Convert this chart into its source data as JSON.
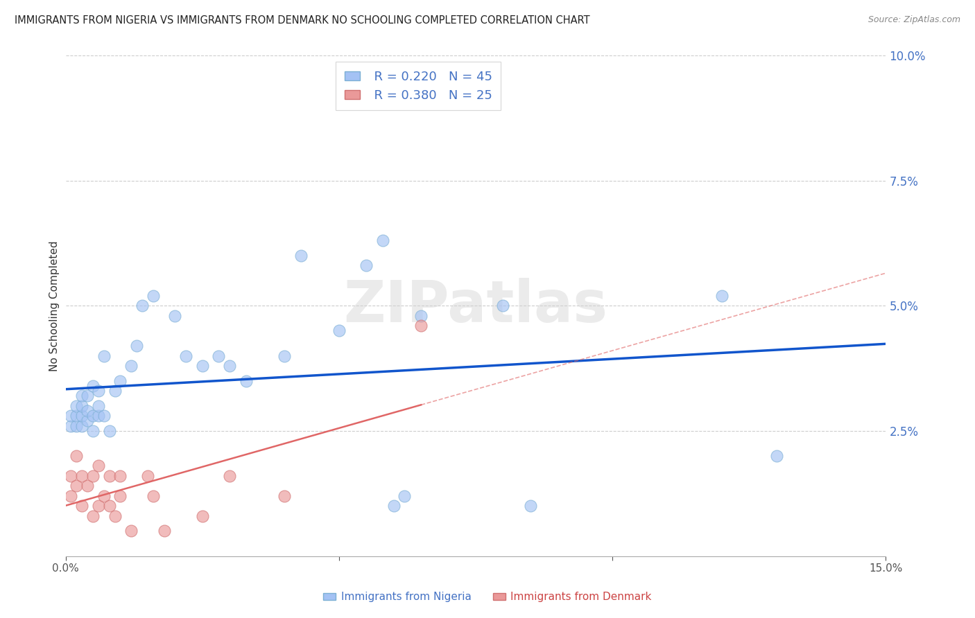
{
  "title": "IMMIGRANTS FROM NIGERIA VS IMMIGRANTS FROM DENMARK NO SCHOOLING COMPLETED CORRELATION CHART",
  "source": "Source: ZipAtlas.com",
  "xlabel_bottom": "Immigrants from Nigeria",
  "xlabel_bottom2": "Immigrants from Denmark",
  "ylabel": "No Schooling Completed",
  "xlim": [
    0.0,
    0.15
  ],
  "ylim": [
    0.0,
    0.1
  ],
  "xticks": [
    0.0,
    0.05,
    0.1,
    0.15
  ],
  "xtick_labels": [
    "0.0%",
    "",
    "",
    "15.0%"
  ],
  "ytick_labels_right": [
    "10.0%",
    "7.5%",
    "5.0%",
    "2.5%"
  ],
  "yticks_right": [
    0.1,
    0.075,
    0.05,
    0.025
  ],
  "nigeria_R": 0.22,
  "nigeria_N": 45,
  "denmark_R": 0.38,
  "denmark_N": 25,
  "nigeria_color": "#a4c2f4",
  "denmark_color": "#ea9999",
  "nigeria_line_color": "#1155cc",
  "denmark_line_color": "#e06666",
  "watermark_text": "ZIPatlas",
  "nigeria_x": [
    0.001,
    0.001,
    0.002,
    0.002,
    0.002,
    0.003,
    0.003,
    0.003,
    0.003,
    0.004,
    0.004,
    0.004,
    0.005,
    0.005,
    0.005,
    0.006,
    0.006,
    0.006,
    0.007,
    0.007,
    0.008,
    0.009,
    0.01,
    0.012,
    0.013,
    0.014,
    0.016,
    0.02,
    0.022,
    0.025,
    0.028,
    0.03,
    0.033,
    0.04,
    0.043,
    0.05,
    0.055,
    0.058,
    0.06,
    0.062,
    0.065,
    0.08,
    0.085,
    0.12,
    0.13
  ],
  "nigeria_y": [
    0.026,
    0.028,
    0.026,
    0.028,
    0.03,
    0.026,
    0.028,
    0.03,
    0.032,
    0.027,
    0.029,
    0.032,
    0.025,
    0.028,
    0.034,
    0.028,
    0.03,
    0.033,
    0.028,
    0.04,
    0.025,
    0.033,
    0.035,
    0.038,
    0.042,
    0.05,
    0.052,
    0.048,
    0.04,
    0.038,
    0.04,
    0.038,
    0.035,
    0.04,
    0.06,
    0.045,
    0.058,
    0.063,
    0.01,
    0.012,
    0.048,
    0.05,
    0.01,
    0.052,
    0.02
  ],
  "denmark_x": [
    0.001,
    0.001,
    0.002,
    0.002,
    0.003,
    0.003,
    0.004,
    0.005,
    0.005,
    0.006,
    0.006,
    0.007,
    0.008,
    0.008,
    0.009,
    0.01,
    0.01,
    0.012,
    0.015,
    0.016,
    0.018,
    0.025,
    0.03,
    0.04,
    0.065
  ],
  "denmark_y": [
    0.012,
    0.016,
    0.014,
    0.02,
    0.01,
    0.016,
    0.014,
    0.008,
    0.016,
    0.01,
    0.018,
    0.012,
    0.01,
    0.016,
    0.008,
    0.012,
    0.016,
    0.005,
    0.016,
    0.012,
    0.005,
    0.008,
    0.016,
    0.012,
    0.046
  ],
  "nigeria_intercept": 0.027,
  "nigeria_slope": 0.155,
  "denmark_intercept": 0.008,
  "denmark_slope": 0.28
}
